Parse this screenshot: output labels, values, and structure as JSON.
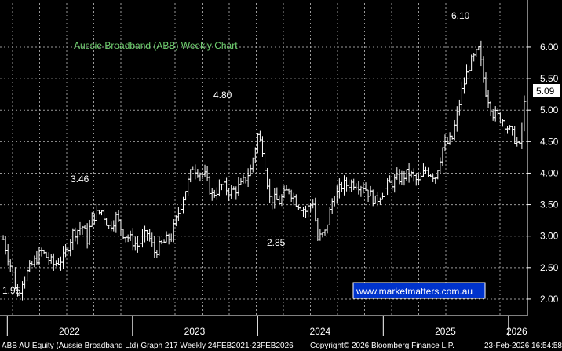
{
  "chart_data": {
    "type": "ohlc",
    "title": "Aussie Broadband (ABB) Weekly Chart",
    "ylim": [
      1.75,
      6.25
    ],
    "yticks": [
      "2.00",
      "2.50",
      "3.00",
      "3.50",
      "4.00",
      "4.50",
      "5.00",
      "5.50",
      "6.00"
    ],
    "xtick_labels": [
      "2022",
      "2023",
      "2024",
      "2025",
      "2026"
    ],
    "annotations": [
      "1.95",
      "3.46",
      "2.85",
      "4.80",
      "6.10"
    ],
    "last_price": "5.09",
    "watermark": "www.marketmatters.com.au",
    "grid": true,
    "anchors": [
      [
        "2021-12-20",
        2.95
      ],
      [
        "2022-01-17",
        2.4
      ],
      [
        "2022-01-31",
        2.05
      ],
      [
        "2022-02-14",
        2.3
      ],
      [
        "2022-03-21",
        2.6
      ],
      [
        "2022-04-11",
        2.75
      ],
      [
        "2022-05-16",
        2.55
      ],
      [
        "2022-06-13",
        2.65
      ],
      [
        "2022-07-11",
        3.05
      ],
      [
        "2022-08-08",
        3.15
      ],
      [
        "2022-08-22",
        2.95
      ],
      [
        "2022-09-05",
        3.3
      ],
      [
        "2022-10-03",
        3.4
      ],
      [
        "2022-10-24",
        3.15
      ],
      [
        "2022-11-14",
        3.3
      ],
      [
        "2022-12-05",
        3.05
      ],
      [
        "2023-01-16",
        2.85
      ],
      [
        "2023-02-13",
        3.05
      ],
      [
        "2023-03-06",
        2.75
      ],
      [
        "2023-04-03",
        2.9
      ],
      [
        "2023-04-24",
        3.0
      ],
      [
        "2023-05-22",
        3.5
      ],
      [
        "2023-06-26",
        4.1
      ],
      [
        "2023-07-31",
        3.95
      ],
      [
        "2023-08-21",
        3.65
      ],
      [
        "2023-09-18",
        3.8
      ],
      [
        "2023-10-16",
        3.7
      ],
      [
        "2023-11-13",
        3.8
      ],
      [
        "2023-12-11",
        4.05
      ],
      [
        "2024-01-01",
        4.6
      ],
      [
        "2024-01-15",
        4.4
      ],
      [
        "2024-02-05",
        3.6
      ],
      [
        "2024-03-04",
        3.55
      ],
      [
        "2024-04-01",
        3.75
      ],
      [
        "2024-04-22",
        3.55
      ],
      [
        "2024-05-20",
        3.4
      ],
      [
        "2024-06-10",
        3.55
      ],
      [
        "2024-06-24",
        2.95
      ],
      [
        "2024-07-15",
        3.05
      ],
      [
        "2024-08-05",
        3.55
      ],
      [
        "2024-09-02",
        3.8
      ],
      [
        "2024-10-07",
        3.85
      ],
      [
        "2024-11-04",
        3.8
      ],
      [
        "2024-12-09",
        3.55
      ],
      [
        "2025-01-13",
        3.8
      ],
      [
        "2025-02-10",
        3.9
      ],
      [
        "2025-03-17",
        4.0
      ],
      [
        "2025-04-14",
        3.85
      ],
      [
        "2025-05-05",
        4.05
      ],
      [
        "2025-06-02",
        3.95
      ],
      [
        "2025-06-23",
        4.4
      ],
      [
        "2025-07-21",
        4.55
      ],
      [
        "2025-08-18",
        5.3
      ],
      [
        "2025-09-08",
        5.7
      ],
      [
        "2025-10-06",
        5.95
      ],
      [
        "2025-10-27",
        5.3
      ],
      [
        "2025-11-17",
        4.95
      ],
      [
        "2025-12-15",
        4.85
      ],
      [
        "2026-01-19",
        4.55
      ],
      [
        "2026-02-02",
        4.4
      ],
      [
        "2026-02-16",
        5.09
      ]
    ]
  },
  "footer": {
    "left": "ABB AU Equity (Aussie Broadband Ltd) Graph 217 Weekly 24FEB2021-23FEB2026",
    "center": "Copyright© 2026 Bloomberg Finance L.P.",
    "right": "23-Feb-2026 16:54:58"
  },
  "colors": {
    "bar": "#ffffff",
    "grid": "#9a9a9a",
    "title": "#6fd06f",
    "background": "#000000",
    "box": "#0033cc"
  }
}
